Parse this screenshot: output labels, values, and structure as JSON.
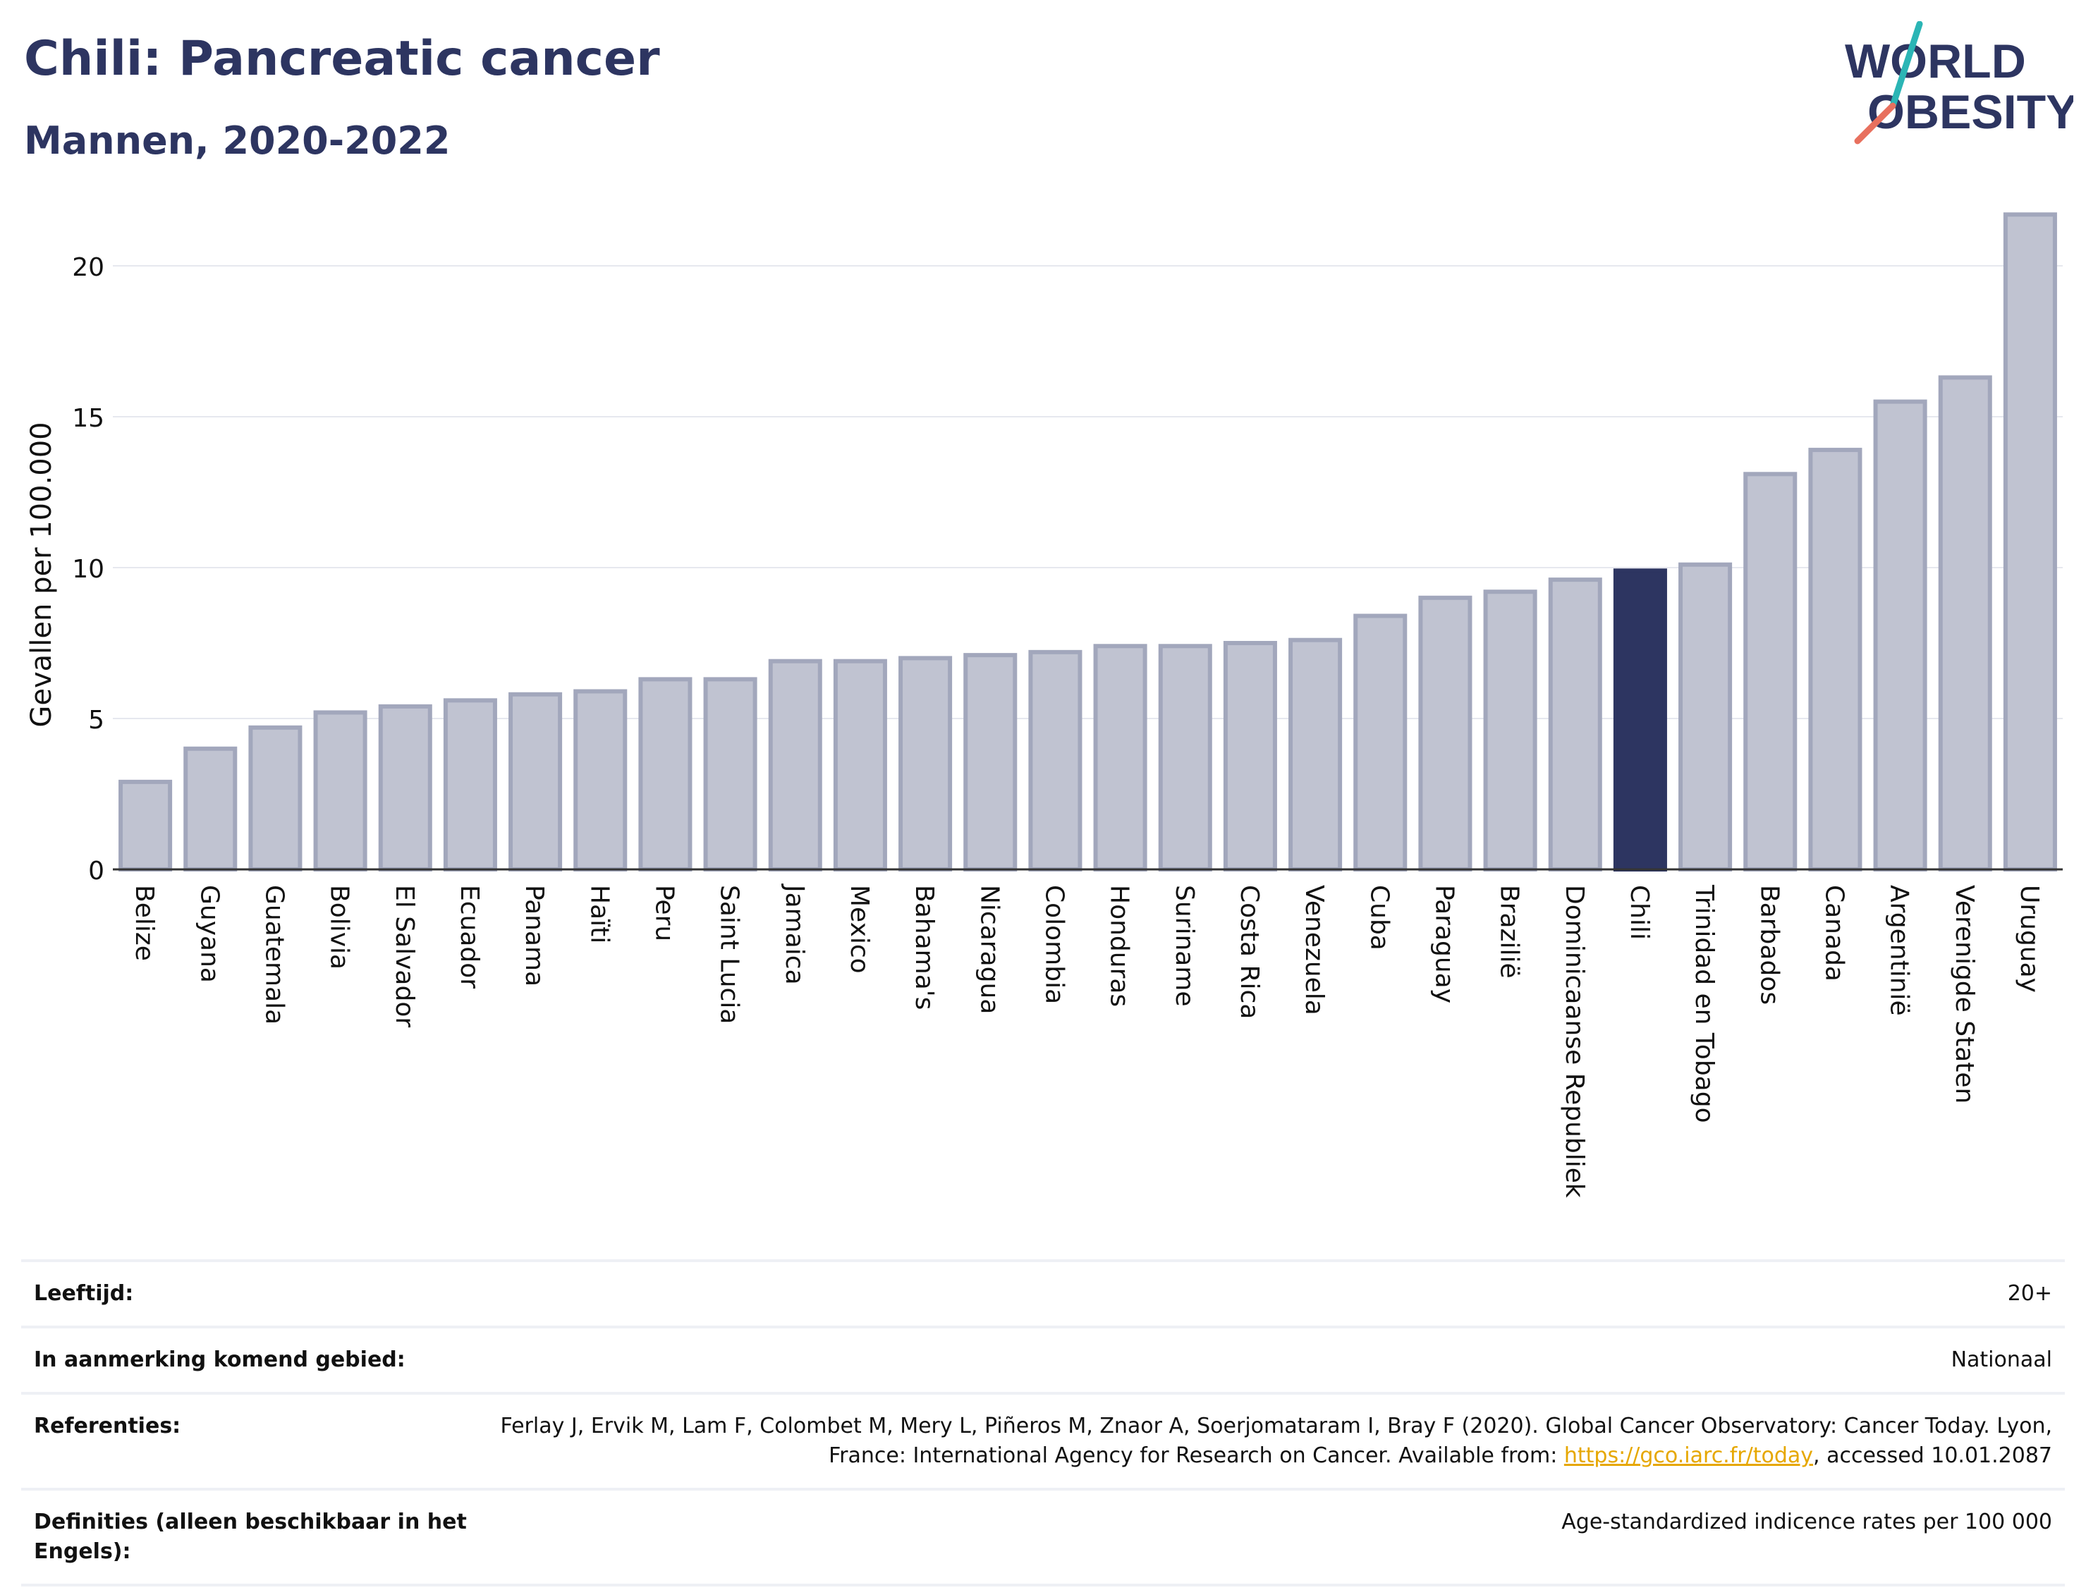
{
  "title": "Chili: Pancreatic cancer",
  "subtitle": "Mannen, 2020-2022",
  "logo": {
    "line1": "WORLD",
    "line2": "OBESITY"
  },
  "colors": {
    "bar_fill": "#c0c3d1",
    "bar_stroke": "#a2a7bc",
    "highlight": "#2d3561",
    "title": "#2d3561",
    "logo_teal": "#2bb5b5",
    "logo_coral": "#e8705e",
    "link": "#e6a700"
  },
  "chart_data": {
    "type": "bar",
    "ylabel": "Gevallen per 100.000",
    "xlabel": "",
    "ylim": [
      0,
      22.5
    ],
    "yticks": [
      0,
      5,
      10,
      15,
      20
    ],
    "grid": true,
    "highlight": "Chili",
    "categories": [
      "Belize",
      "Guyana",
      "Guatemala",
      "Bolivia",
      "El Salvador",
      "Ecuador",
      "Panama",
      "Haïti",
      "Peru",
      "Saint Lucia",
      "Jamaica",
      "Mexico",
      "Bahama's",
      "Nicaragua",
      "Colombia",
      "Honduras",
      "Suriname",
      "Costa Rica",
      "Venezuela",
      "Cuba",
      "Paraguay",
      "Brazilië",
      "Dominicaanse Republiek",
      "Chili",
      "Trinidad en Tobago",
      "Barbados",
      "Canada",
      "Argentinië",
      "Verenigde Staten",
      "Uruguay"
    ],
    "values": [
      2.9,
      4.0,
      4.7,
      5.2,
      5.4,
      5.6,
      5.8,
      5.9,
      6.3,
      6.3,
      6.9,
      6.9,
      7.0,
      7.1,
      7.2,
      7.4,
      7.4,
      7.5,
      7.6,
      8.4,
      9.0,
      9.2,
      9.6,
      9.9,
      10.1,
      13.1,
      13.9,
      15.5,
      16.3,
      21.7
    ]
  },
  "info": {
    "age_label": "Leeftijd:",
    "age_value": "20+",
    "area_label": "In aanmerking komend gebied:",
    "area_value": "Nationaal",
    "ref_label": "Referenties:",
    "ref_text_1": "Ferlay J, Ervik M, Lam F, Colombet M, Mery L, Piñeros M, Znaor A, Soerjomataram I, Bray F (2020). Global Cancer Observatory: Cancer Today. Lyon, France: International Agency for Research on Cancer. Available from: ",
    "ref_link": "https://gco.iarc.fr/today",
    "ref_text_2": ", accessed 10.01.2087",
    "def_label": "Definities (alleen beschikbaar in het Engels):",
    "def_value": "Age-standardized indicence rates per 100 000"
  }
}
